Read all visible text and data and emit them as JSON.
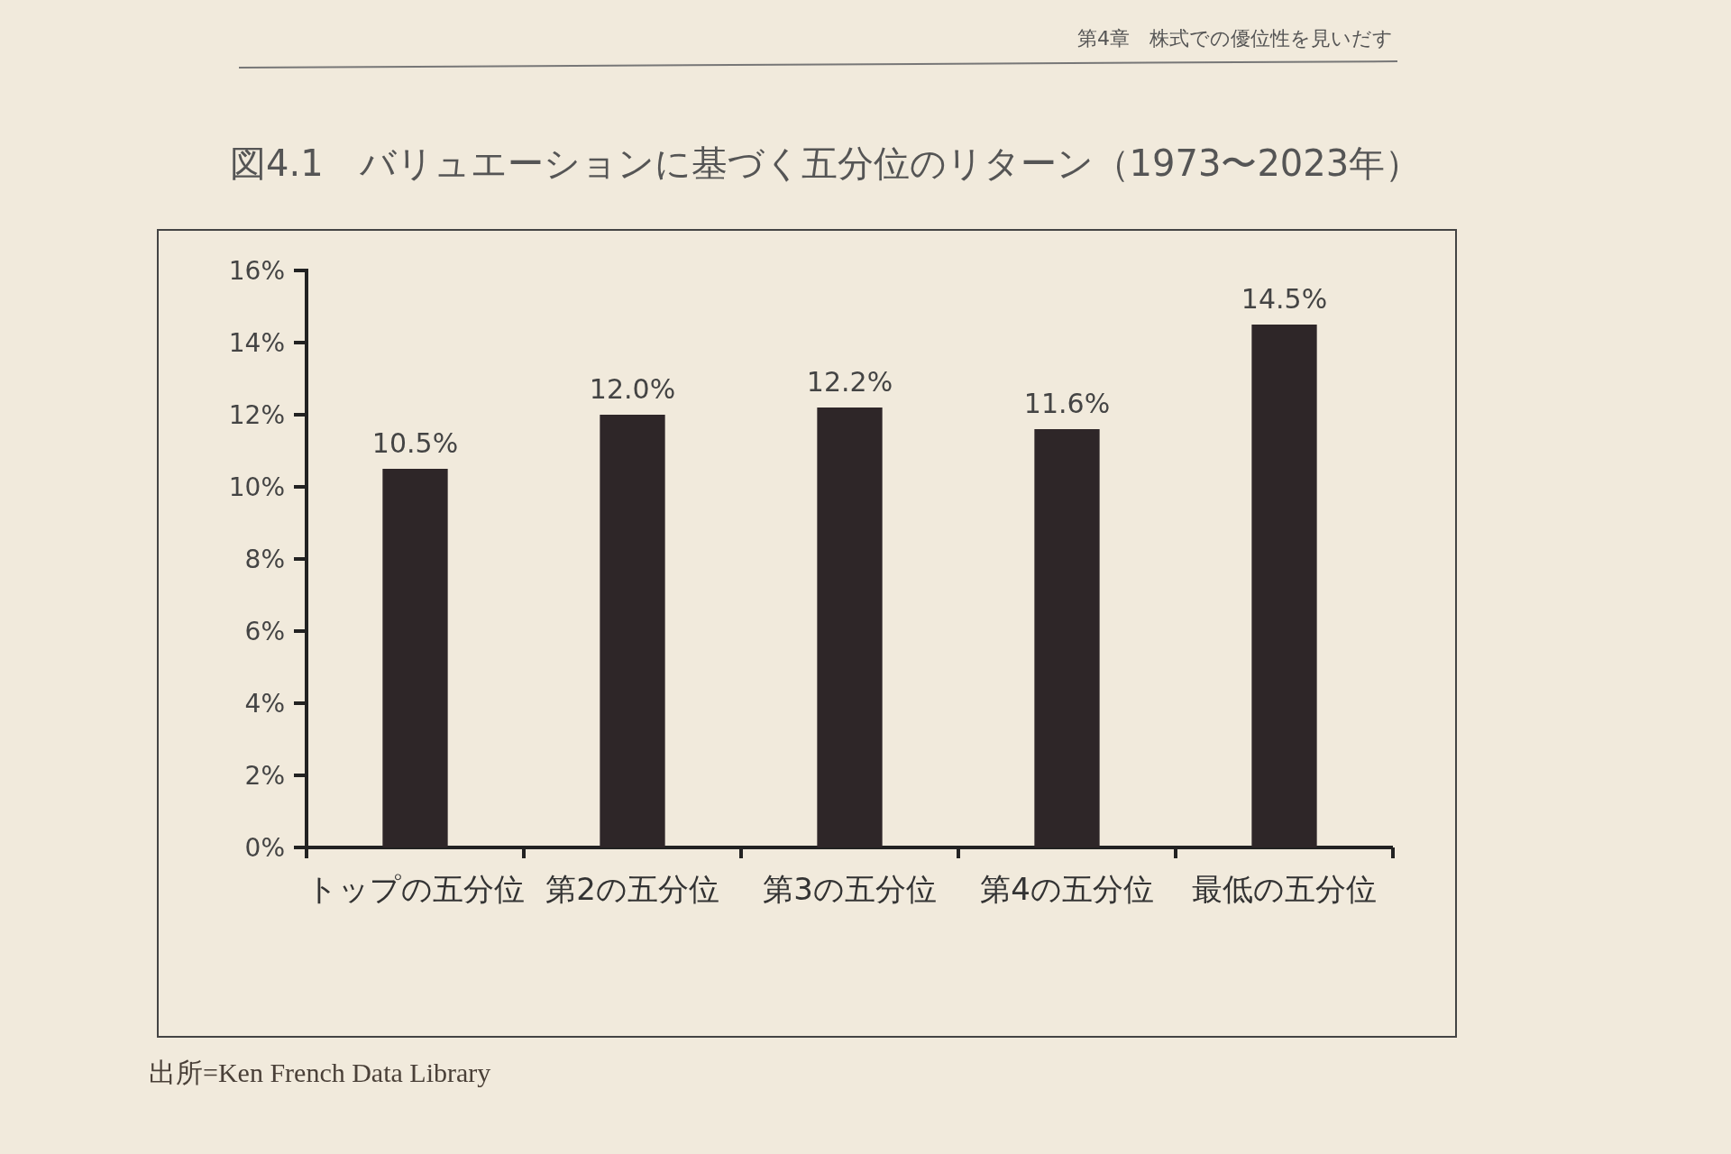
{
  "chart_data": {
    "type": "bar",
    "title": "図4.1　バリュエーションに基づく五分位のリターン（1973〜2023年）",
    "categories": [
      "トップの五分位",
      "第2の五分位",
      "第3の五分位",
      "第4の五分位",
      "最低の五分位"
    ],
    "values": [
      10.5,
      12.0,
      12.2,
      11.6,
      14.5
    ],
    "value_labels": [
      "10.5%",
      "12.0%",
      "12.2%",
      "11.6%",
      "14.5%"
    ],
    "color": "#2e2628",
    "ylim": [
      0,
      16
    ],
    "yticks": [
      {
        "value": 0,
        "label": "0%"
      },
      {
        "value": 2,
        "label": "2%"
      },
      {
        "value": 4,
        "label": "4%"
      },
      {
        "value": 6,
        "label": "6%"
      },
      {
        "value": 8,
        "label": "8%"
      },
      {
        "value": 10,
        "label": "10%"
      },
      {
        "value": 12,
        "label": "12%"
      },
      {
        "value": 14,
        "label": "14%"
      },
      {
        "value": 16,
        "label": "16%"
      }
    ],
    "annotations": [
      "第4章　株式での優位性を見いだす",
      "出所=Ken French Data Library"
    ]
  }
}
